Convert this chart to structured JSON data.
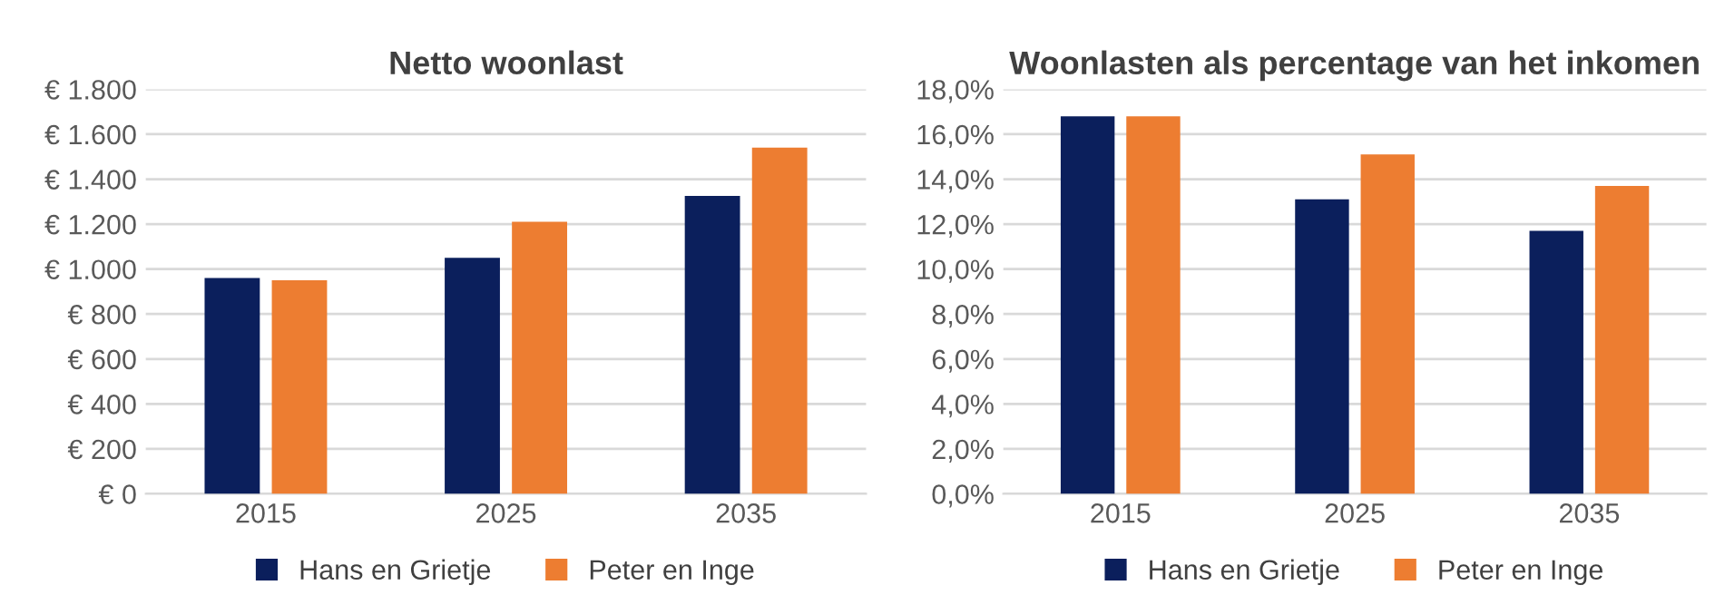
{
  "chart_data": [
    {
      "type": "bar",
      "title": "Netto woonlast",
      "categories": [
        "2015",
        "2025",
        "2035"
      ],
      "series": [
        {
          "name": "Hans en Grietje",
          "color": "#0b1f5c",
          "values": [
            960,
            1050,
            1325
          ]
        },
        {
          "name": "Peter en Inge",
          "color": "#ed7d31",
          "values": [
            950,
            1210,
            1540
          ]
        }
      ],
      "ylim": [
        0,
        1800
      ],
      "yticks": [
        {
          "value": 0,
          "label": "€ 0"
        },
        {
          "value": 200,
          "label": "€ 200"
        },
        {
          "value": 400,
          "label": "€ 400"
        },
        {
          "value": 600,
          "label": "€ 600"
        },
        {
          "value": 800,
          "label": "€ 800"
        },
        {
          "value": 1000,
          "label": "€ 1.000"
        },
        {
          "value": 1200,
          "label": "€ 1.200"
        },
        {
          "value": 1400,
          "label": "€ 1.400"
        },
        {
          "value": 1600,
          "label": "€ 1.600"
        },
        {
          "value": 1800,
          "label": "€ 1.800"
        }
      ],
      "grid": "y",
      "legend": "bottom"
    },
    {
      "type": "bar",
      "title": "Woonlasten als percentage van het inkomen",
      "categories": [
        "2015",
        "2025",
        "2035"
      ],
      "series": [
        {
          "name": "Hans en Grietje",
          "color": "#0b1f5c",
          "values": [
            16.8,
            13.1,
            11.7
          ]
        },
        {
          "name": "Peter en Inge",
          "color": "#ed7d31",
          "values": [
            16.8,
            15.1,
            13.7
          ]
        }
      ],
      "ylim": [
        0,
        18
      ],
      "yticks": [
        {
          "value": 0,
          "label": "0,0%"
        },
        {
          "value": 2,
          "label": "2,0%"
        },
        {
          "value": 4,
          "label": "4,0%"
        },
        {
          "value": 6,
          "label": "6,0%"
        },
        {
          "value": 8,
          "label": "8,0%"
        },
        {
          "value": 10,
          "label": "10,0%"
        },
        {
          "value": 12,
          "label": "12,0%"
        },
        {
          "value": 14,
          "label": "14,0%"
        },
        {
          "value": 16,
          "label": "16,0%"
        },
        {
          "value": 18,
          "label": "18,0%"
        }
      ],
      "grid": "y",
      "legend": "bottom"
    }
  ]
}
